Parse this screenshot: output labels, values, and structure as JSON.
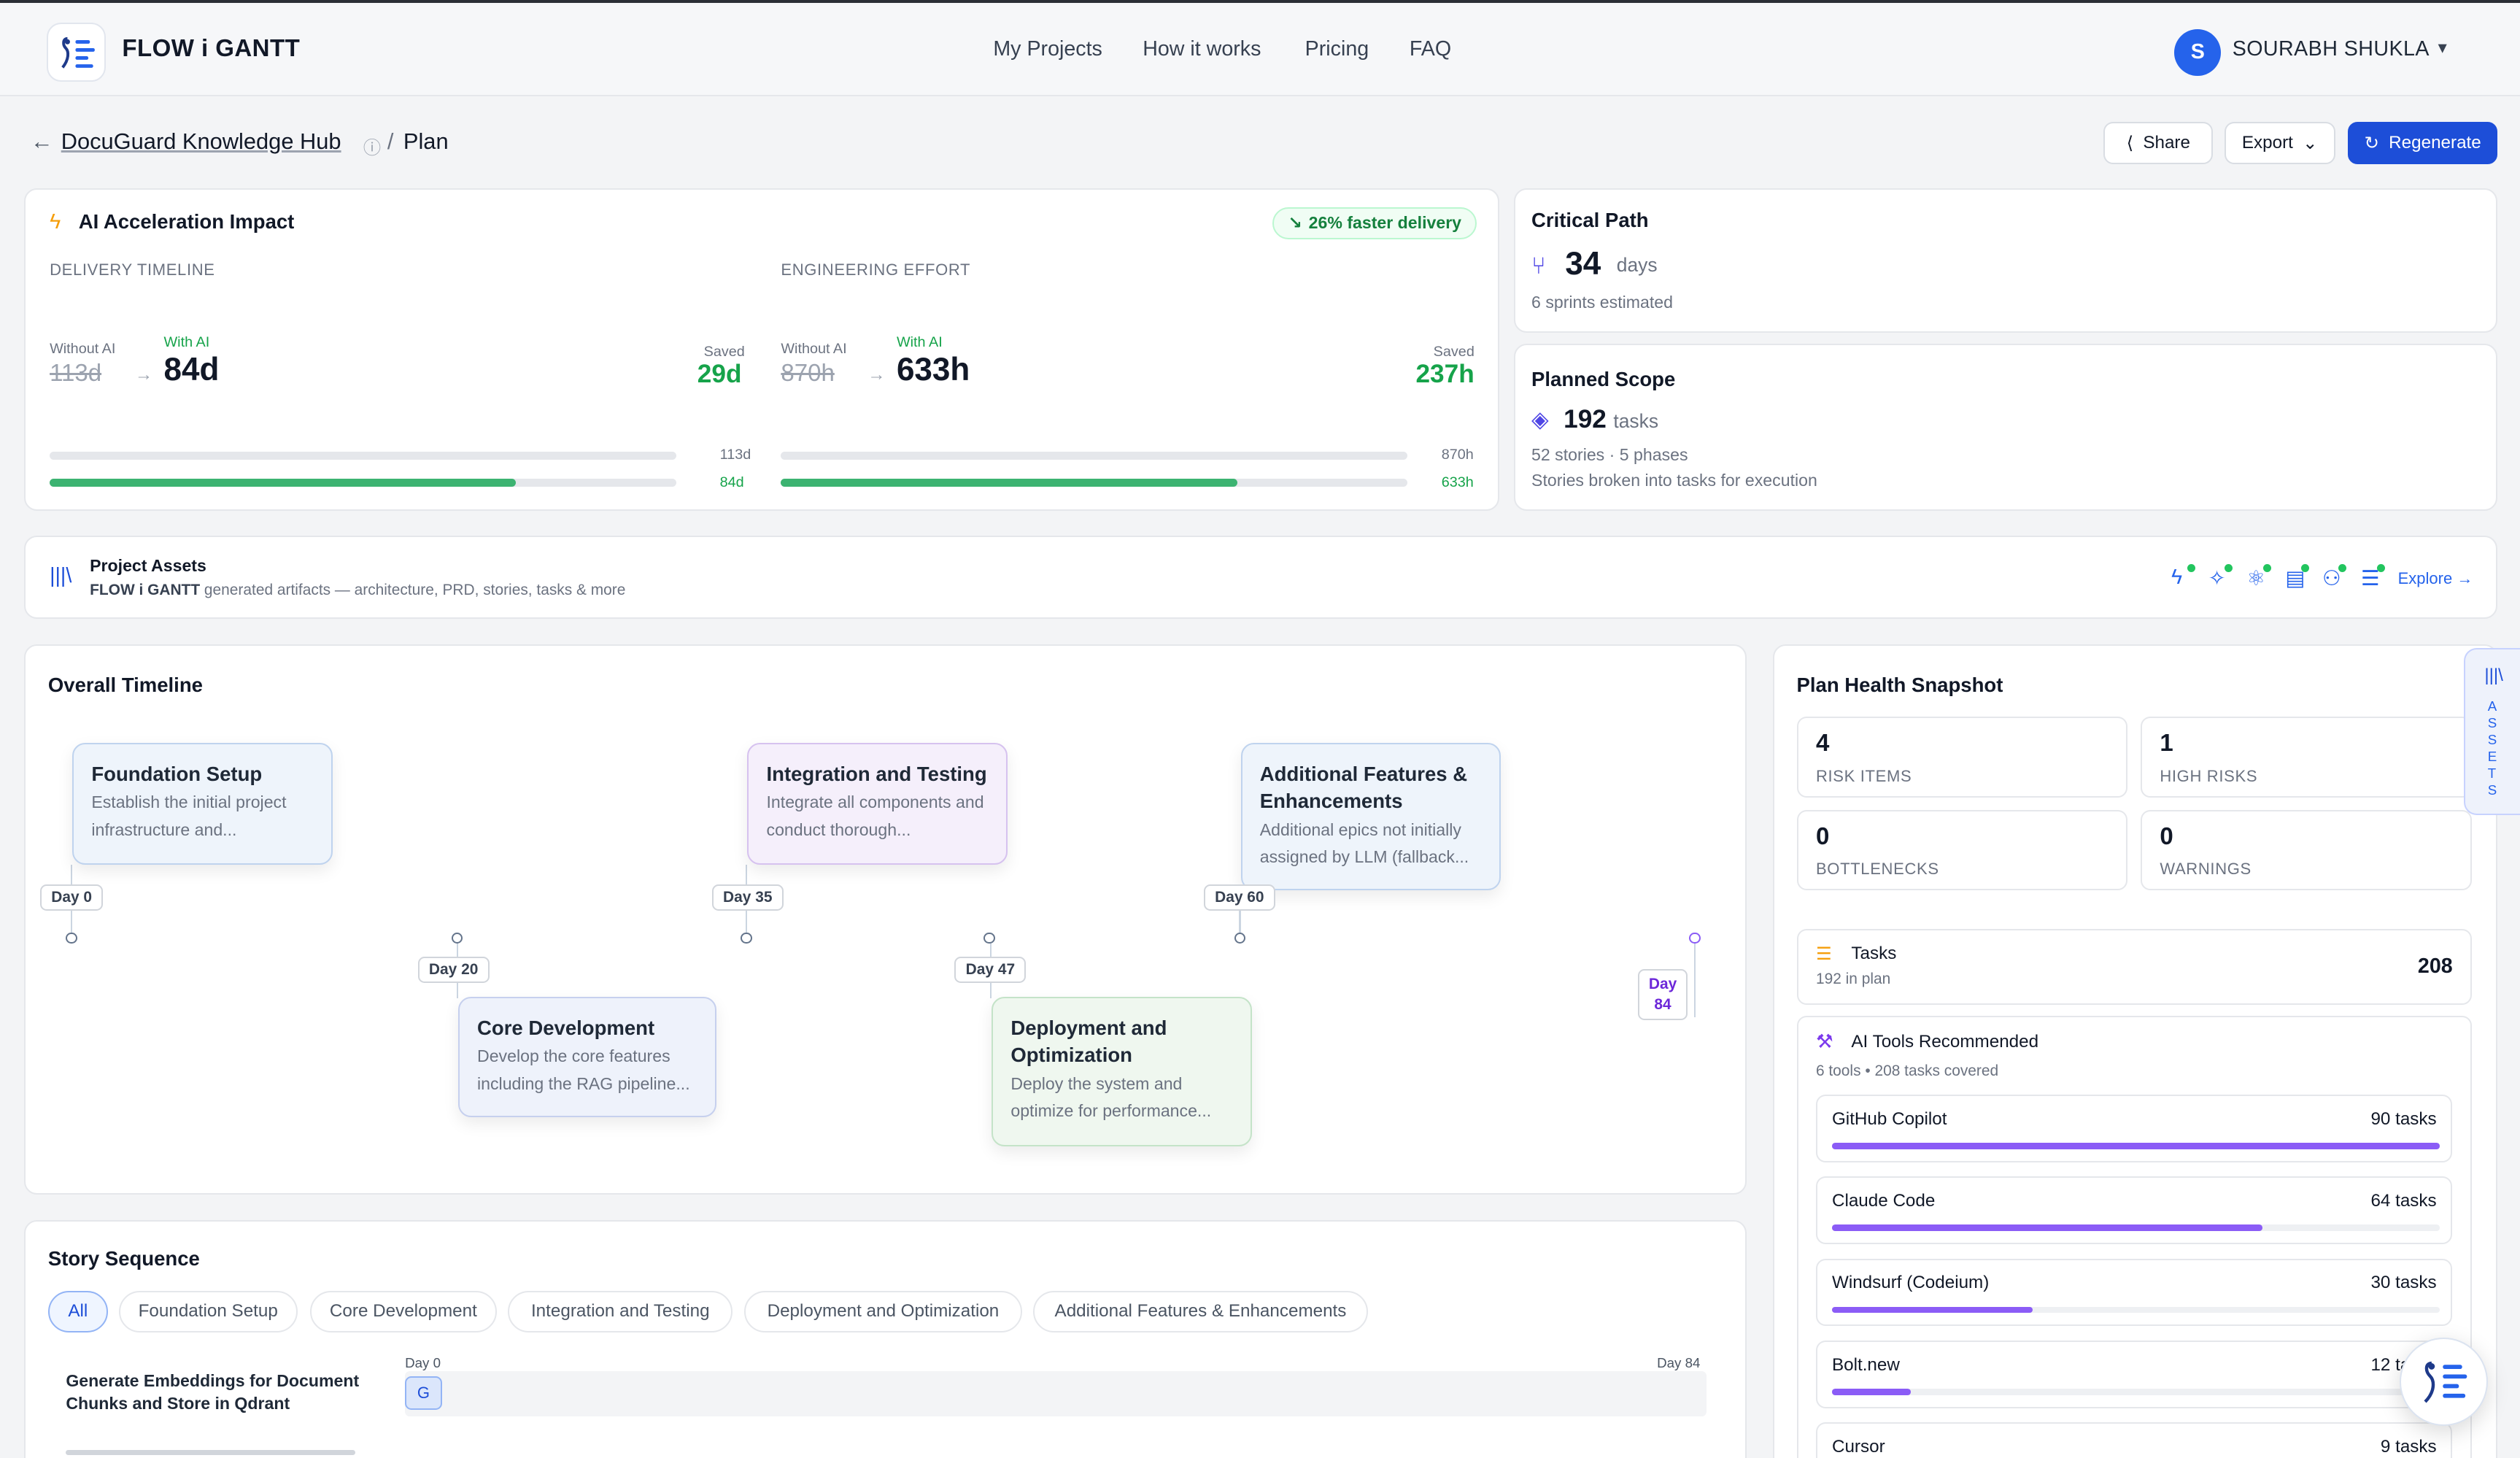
{
  "brand": {
    "name": "FLOW i GANTT"
  },
  "nav": {
    "links": [
      "My Projects",
      "How it works",
      "Pricing",
      "FAQ"
    ]
  },
  "user": {
    "initial": "S",
    "name": "SOURABH SHUKLA"
  },
  "breadcrumb": {
    "project": "DocuGuard Knowledge Hub",
    "separator": "/",
    "page": "Plan"
  },
  "actions": {
    "share": "Share",
    "export": "Export",
    "regenerate": "Regenerate"
  },
  "ai_impact": {
    "title": "AI Acceleration Impact",
    "badge": "26% faster delivery",
    "delivery": {
      "heading": "DELIVERY TIMELINE",
      "without_label": "Without AI",
      "without_value": "113d",
      "with_label": "With AI",
      "with_value": "84d",
      "saved_label": "Saved",
      "saved_value": "29d",
      "bar_without_label": "113d",
      "bar_with_label": "84d",
      "with_fraction": 0.743
    },
    "effort": {
      "heading": "ENGINEERING EFFORT",
      "without_label": "Without AI",
      "without_value": "870h",
      "with_label": "With AI",
      "with_value": "633h",
      "saved_label": "Saved",
      "saved_value": "237h",
      "bar_without_label": "870h",
      "bar_with_label": "633h",
      "with_fraction": 0.728
    }
  },
  "critical_path": {
    "title": "Critical Path",
    "value": "34",
    "unit": "days",
    "sub": "6 sprints estimated"
  },
  "planned_scope": {
    "title": "Planned Scope",
    "value": "192",
    "unit": "tasks",
    "sub1": "52 stories · 5 phases",
    "sub2": "Stories broken into tasks for execution"
  },
  "assets": {
    "title": "Project Assets",
    "brand": "FLOW i GANTT",
    "desc": "generated artifacts — architecture, PRD, stories, tasks & more",
    "explore": "Explore →",
    "icons": [
      "architecture-icon",
      "sparkle-icon",
      "network-icon",
      "document-icon",
      "users-icon",
      "checklist-icon"
    ]
  },
  "timeline": {
    "title": "Overall Timeline",
    "phases": [
      {
        "name": "Foundation Setup",
        "desc": "Establish the initial project infrastructure and...",
        "day": "Day 0"
      },
      {
        "name": "Core Development",
        "desc": "Develop the core features including the RAG pipeline...",
        "day": "Day 20"
      },
      {
        "name": "Integration and Testing",
        "desc": "Integrate all components and conduct thorough...",
        "day": "Day 35"
      },
      {
        "name": "Deployment and Optimization",
        "desc": "Deploy the system and optimize for performance...",
        "day": "Day 47"
      },
      {
        "name": "Additional Features & Enhancements",
        "desc": "Additional epics not initially assigned by LLM (fallback...",
        "day": "Day 60"
      }
    ],
    "end_day_label": "Day",
    "end_day_value": "84"
  },
  "story": {
    "title": "Story Sequence",
    "chips": [
      "All",
      "Foundation Setup",
      "Core Development",
      "Integration and Testing",
      "Deployment and Optimization",
      "Additional Features & Enhancements"
    ],
    "axis_start": "Day 0",
    "axis_end": "Day 84",
    "rows": [
      {
        "name": "Generate Embeddings for Document Chunks and Store in Qdrant",
        "badge": "G"
      }
    ]
  },
  "health": {
    "title": "Plan Health Snapshot",
    "stats": [
      {
        "value": "4",
        "label": "RISK ITEMS"
      },
      {
        "value": "1",
        "label": "HIGH RISKS"
      },
      {
        "value": "0",
        "label": "BOTTLENECKS"
      },
      {
        "value": "0",
        "label": "WARNINGS"
      }
    ],
    "tasks": {
      "title": "Tasks",
      "sub": "192 in plan",
      "count": "208"
    },
    "tools": {
      "title": "AI Tools Recommended",
      "sub": "6 tools • 208 tasks covered",
      "items": [
        {
          "name": "GitHub Copilot",
          "count": "90 tasks",
          "fraction": 1.0
        },
        {
          "name": "Claude Code",
          "count": "64 tasks",
          "fraction": 0.71
        },
        {
          "name": "Windsurf (Codeium)",
          "count": "30 tasks",
          "fraction": 0.33
        },
        {
          "name": "Bolt.new",
          "count": "12 tasks",
          "fraction": 0.13
        },
        {
          "name": "Cursor",
          "count": "9 tasks",
          "fraction": 0.1
        }
      ]
    }
  },
  "side_tab": {
    "label": "ASSETS"
  },
  "colors": {
    "primary": "#1d4ed8",
    "success": "#16a34a",
    "tool_bar": "#8b5cf6",
    "amber": "#f59e0b"
  }
}
